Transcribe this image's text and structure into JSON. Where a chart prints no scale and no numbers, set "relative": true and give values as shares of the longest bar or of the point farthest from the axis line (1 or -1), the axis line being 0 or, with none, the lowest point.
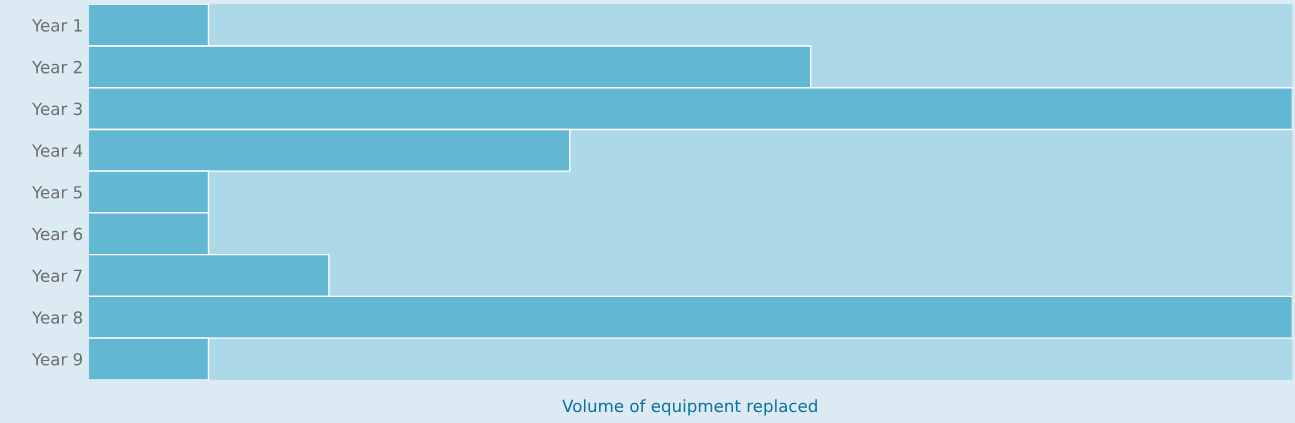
{
  "chart_data": {
    "type": "bar",
    "orientation": "horizontal",
    "relative": true,
    "categories": [
      "Year 1",
      "Year 2",
      "Year 3",
      "Year 4",
      "Year 5",
      "Year 6",
      "Year 7",
      "Year 8",
      "Year 9"
    ],
    "values": [
      0.1,
      0.6,
      1,
      0.4,
      0.1,
      0.1,
      0.2,
      1,
      0.1
    ],
    "color": "#62b7d3",
    "xlabel": "Volume of equipment replaced",
    "tick_labels": "y",
    "grid": false,
    "legend": false
  }
}
